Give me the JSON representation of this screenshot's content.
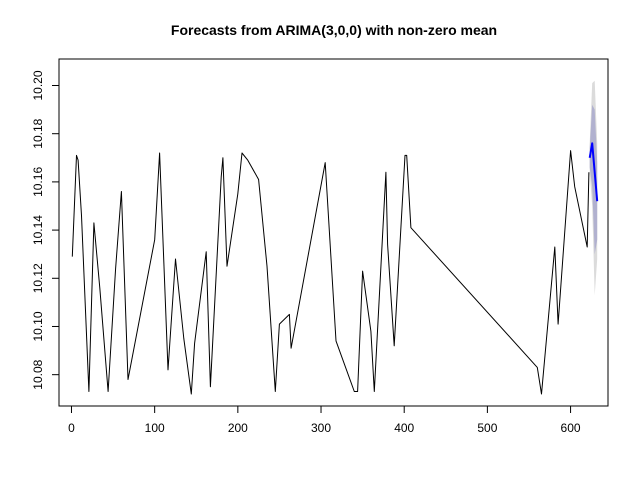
{
  "chart_data": {
    "type": "line",
    "title": "Forecasts from ARIMA(3,0,0) with non-zero mean",
    "xlabel": "",
    "ylabel": "",
    "xlim": [
      -15,
      645
    ],
    "ylim": [
      10.067,
      10.211
    ],
    "x_ticks": [
      0,
      100,
      200,
      300,
      400,
      500,
      600
    ],
    "y_ticks": [
      10.08,
      10.1,
      10.12,
      10.14,
      10.16,
      10.18,
      10.2
    ],
    "y_tick_labels": [
      "10.08",
      "10.10",
      "10.12",
      "10.14",
      "10.16",
      "10.18",
      "10.20"
    ],
    "series": [
      {
        "role": "observed",
        "color": "#000000",
        "x": [
          1,
          6,
          8,
          12,
          21,
          27,
          34,
          44,
          53,
          60,
          68,
          100,
          106,
          116,
          125,
          135,
          144,
          148,
          162,
          167,
          180,
          182,
          187,
          200,
          205,
          212,
          225,
          235,
          245,
          250,
          262,
          264,
          305,
          318,
          340,
          344,
          350,
          360,
          364,
          378,
          380,
          388,
          401,
          403,
          408,
          560,
          565,
          581,
          585,
          600,
          605,
          620,
          622
        ],
        "y": [
          10.129,
          10.171,
          10.169,
          10.146,
          10.073,
          10.143,
          10.116,
          10.073,
          10.124,
          10.156,
          10.078,
          10.136,
          10.172,
          10.082,
          10.128,
          10.095,
          10.072,
          10.093,
          10.131,
          10.075,
          10.162,
          10.17,
          10.125,
          10.155,
          10.172,
          10.169,
          10.161,
          10.125,
          10.073,
          10.101,
          10.105,
          10.091,
          10.168,
          10.094,
          10.073,
          10.073,
          10.123,
          10.098,
          10.073,
          10.164,
          10.134,
          10.092,
          10.171,
          10.171,
          10.141,
          10.083,
          10.072,
          10.133,
          10.101,
          10.173,
          10.158,
          10.133,
          10.164
        ]
      },
      {
        "role": "forecast",
        "color": "#0000ff",
        "x": [
          623,
          626,
          629,
          632
        ],
        "y": [
          10.17,
          10.176,
          10.164,
          10.152
        ]
      }
    ],
    "intervals": [
      {
        "level": 95,
        "color": "#dbdbdb",
        "x": [
          623,
          626,
          629,
          632
        ],
        "lower": [
          10.164,
          10.15,
          10.113,
          10.128
        ],
        "upper": [
          10.176,
          10.201,
          10.202,
          10.176
        ]
      },
      {
        "level": 80,
        "color": "#b1b1cf",
        "x": [
          623,
          626,
          629,
          632
        ],
        "lower": [
          10.166,
          10.158,
          10.13,
          10.136
        ],
        "upper": [
          10.174,
          10.192,
          10.19,
          10.168
        ]
      }
    ],
    "grid": false,
    "legend": "none"
  }
}
